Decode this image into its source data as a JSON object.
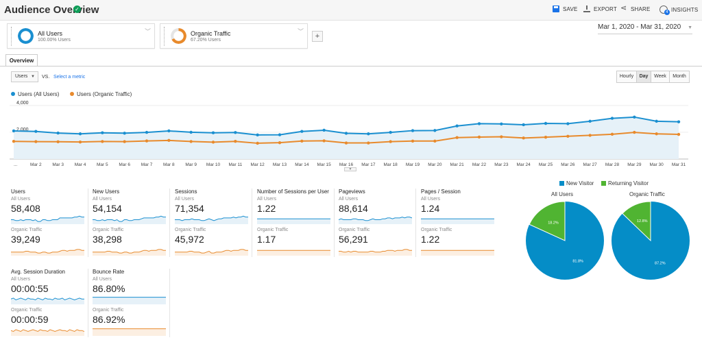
{
  "header": {
    "title": "Audience Overview",
    "actions": [
      {
        "label": "SAVE",
        "icon": "save-icon"
      },
      {
        "label": "EXPORT",
        "icon": "export-icon"
      },
      {
        "label": "SHARE",
        "icon": "share-icon"
      },
      {
        "label": "INSIGHTS",
        "icon": "insights-icon",
        "badge": "4"
      }
    ]
  },
  "segments": [
    {
      "name": "All Users",
      "sub": "100.00% Users",
      "percent": 100,
      "color": "#1a8fd0"
    },
    {
      "name": "Organic Traffic",
      "sub": "67.20% Users",
      "percent": 67.2,
      "color": "#e88a2c"
    }
  ],
  "date_range": "Mar 1, 2020 - Mar 31, 2020",
  "tabs": {
    "overview": "Overview"
  },
  "controls": {
    "metric": "Users",
    "vs": "VS.",
    "select_metric": "Select a metric",
    "granularity": [
      {
        "label": "Hourly",
        "active": false
      },
      {
        "label": "Day",
        "active": true
      },
      {
        "label": "Week",
        "active": false
      },
      {
        "label": "Month",
        "active": false
      }
    ]
  },
  "chart_legend": {
    "all_users": "Users (All Users)",
    "organic": "Users (Organic Traffic)"
  },
  "colors": {
    "blue": "#1a8fd0",
    "orange": "#e88a2c",
    "pie_blue": "#058dc7",
    "pie_green": "#50b432"
  },
  "chart_data": {
    "type": "line",
    "y_ticks": [
      "4,000",
      "2,000"
    ],
    "ylim": [
      0,
      4400
    ],
    "x_ticks": [
      "...",
      "Mar 2",
      "Mar 3",
      "Mar 4",
      "Mar 5",
      "Mar 6",
      "Mar 7",
      "Mar 8",
      "Mar 9",
      "Mar 10",
      "Mar 11",
      "Mar 12",
      "Mar 13",
      "Mar 14",
      "Mar 15",
      "Mar 16",
      "Mar 17",
      "Mar 18",
      "Mar 19",
      "Mar 20",
      "Mar 21",
      "Mar 22",
      "Mar 23",
      "Mar 24",
      "Mar 25",
      "Mar 26",
      "Mar 27",
      "Mar 28",
      "Mar 29",
      "Mar 30",
      "Mar 31"
    ],
    "series": [
      {
        "name": "Users (All Users)",
        "values": [
          2100,
          2060,
          1940,
          1880,
          1960,
          1930,
          1990,
          2100,
          2000,
          1960,
          1980,
          1800,
          1810,
          2060,
          2150,
          1920,
          1880,
          1990,
          2120,
          2130,
          2470,
          2640,
          2620,
          2560,
          2660,
          2640,
          2820,
          3040,
          3130,
          2820,
          2780
        ]
      },
      {
        "name": "Users (Organic Traffic)",
        "values": [
          1320,
          1300,
          1290,
          1270,
          1310,
          1300,
          1350,
          1390,
          1310,
          1260,
          1320,
          1180,
          1220,
          1340,
          1360,
          1200,
          1200,
          1300,
          1340,
          1340,
          1600,
          1640,
          1660,
          1570,
          1630,
          1700,
          1770,
          1850,
          1990,
          1880,
          1840
        ]
      }
    ]
  },
  "metrics": [
    {
      "title": "Users",
      "all_label": "All Users",
      "all_value": "58,408",
      "org_label": "Organic Traffic",
      "org_value": "39,249",
      "spark_all": [
        5,
        5,
        4,
        4,
        5,
        4,
        5,
        5,
        5,
        4,
        5,
        3,
        3,
        5,
        5,
        4,
        4,
        5,
        5,
        5,
        7,
        7,
        7,
        7,
        7,
        7,
        8,
        8,
        9,
        8,
        8
      ],
      "spark_org": [
        4,
        4,
        4,
        4,
        4,
        4,
        5,
        5,
        4,
        4,
        4,
        3,
        3,
        4,
        4,
        3,
        3,
        4,
        4,
        4,
        5,
        6,
        6,
        5,
        6,
        6,
        6,
        7,
        7,
        6,
        6
      ]
    },
    {
      "title": "New Users",
      "all_label": "All Users",
      "all_value": "54,154",
      "org_label": "Organic Traffic",
      "org_value": "38,298",
      "spark_all": [
        5,
        5,
        4,
        4,
        5,
        4,
        5,
        5,
        5,
        4,
        5,
        3,
        3,
        5,
        5,
        4,
        4,
        5,
        5,
        5,
        6,
        7,
        7,
        7,
        7,
        7,
        8,
        8,
        9,
        8,
        8
      ],
      "spark_org": [
        4,
        4,
        4,
        4,
        4,
        4,
        5,
        5,
        4,
        4,
        4,
        3,
        3,
        4,
        4,
        3,
        3,
        4,
        4,
        4,
        5,
        6,
        6,
        5,
        6,
        6,
        6,
        7,
        7,
        6,
        6
      ]
    },
    {
      "title": "Sessions",
      "all_label": "All Users",
      "all_value": "71,354",
      "org_label": "Organic Traffic",
      "org_value": "45,972",
      "spark_all": [
        5,
        5,
        5,
        4,
        5,
        5,
        5,
        6,
        5,
        5,
        5,
        4,
        4,
        5,
        6,
        5,
        4,
        5,
        6,
        6,
        7,
        7,
        7,
        7,
        8,
        7,
        8,
        8,
        9,
        8,
        8
      ],
      "spark_org": [
        4,
        4,
        4,
        4,
        4,
        4,
        5,
        5,
        4,
        4,
        4,
        3,
        3,
        4,
        5,
        3,
        3,
        4,
        4,
        4,
        5,
        6,
        6,
        5,
        6,
        6,
        6,
        7,
        7,
        6,
        6
      ]
    },
    {
      "title": "Number of Sessions per User",
      "all_label": "All Users",
      "all_value": "1.22",
      "org_label": "Organic Traffic",
      "org_value": "1.17",
      "spark_all": [
        6,
        6,
        6,
        6,
        6,
        6,
        6,
        6,
        6,
        6,
        6,
        6,
        6,
        6,
        6,
        6,
        6,
        6,
        6,
        6,
        6,
        6,
        6,
        6,
        6,
        6,
        6,
        6,
        6,
        6,
        6
      ],
      "spark_org": [
        6,
        6,
        6,
        6,
        6,
        6,
        6,
        6,
        6,
        6,
        6,
        6,
        6,
        6,
        6,
        6,
        6,
        6,
        6,
        6,
        6,
        6,
        6,
        6,
        6,
        6,
        6,
        6,
        6,
        6,
        6
      ]
    },
    {
      "title": "Pageviews",
      "all_label": "All Users",
      "all_value": "88,614",
      "org_label": "Organic Traffic",
      "org_value": "56,291",
      "spark_all": [
        5,
        6,
        5,
        5,
        5,
        5,
        6,
        6,
        5,
        5,
        5,
        4,
        4,
        5,
        6,
        5,
        5,
        5,
        6,
        6,
        7,
        7,
        6,
        7,
        7,
        7,
        8,
        7,
        8,
        8,
        7
      ],
      "spark_org": [
        5,
        5,
        4,
        4,
        5,
        4,
        5,
        5,
        4,
        4,
        4,
        4,
        4,
        5,
        5,
        4,
        4,
        4,
        5,
        5,
        6,
        6,
        6,
        5,
        6,
        6,
        6,
        7,
        7,
        6,
        6
      ]
    },
    {
      "title": "Pages / Session",
      "all_label": "All Users",
      "all_value": "1.24",
      "org_label": "Organic Traffic",
      "org_value": "1.22",
      "spark_all": [
        6,
        6,
        6,
        6,
        6,
        6,
        6,
        6,
        6,
        6,
        6,
        6,
        6,
        6,
        6,
        6,
        6,
        6,
        6,
        6,
        6,
        6,
        6,
        6,
        6,
        6,
        6,
        6,
        6,
        6,
        6
      ],
      "spark_org": [
        6,
        6,
        6,
        6,
        6,
        6,
        6,
        6,
        6,
        6,
        6,
        6,
        6,
        6,
        6,
        6,
        6,
        6,
        6,
        6,
        6,
        6,
        6,
        6,
        6,
        6,
        6,
        6,
        6,
        6,
        6
      ]
    },
    {
      "title": "Avg. Session Duration",
      "all_label": "All Users",
      "all_value": "00:00:55",
      "org_label": "Organic Traffic",
      "org_value": "00:00:59",
      "spark_all": [
        6,
        7,
        5,
        6,
        7,
        6,
        5,
        7,
        6,
        6,
        5,
        7,
        6,
        5,
        7,
        6,
        6,
        5,
        7,
        6,
        6,
        7,
        5,
        6,
        7,
        6,
        5,
        6,
        7,
        6,
        6
      ],
      "spark_org": [
        6,
        5,
        7,
        6,
        5,
        7,
        6,
        5,
        6,
        7,
        6,
        5,
        7,
        6,
        6,
        5,
        7,
        6,
        5,
        6,
        7,
        6,
        6,
        5,
        7,
        6,
        5,
        7,
        6,
        6,
        5
      ]
    },
    {
      "title": "Bounce Rate",
      "all_label": "All Users",
      "all_value": "86.80%",
      "org_label": "Organic Traffic",
      "org_value": "86.92%",
      "spark_all": [
        8,
        8,
        8,
        8,
        8,
        8,
        8,
        8,
        8,
        8,
        8,
        8,
        8,
        8,
        8,
        8,
        8,
        8,
        8,
        8,
        8,
        8,
        8,
        8,
        8,
        8,
        8,
        8,
        8,
        8,
        8
      ],
      "spark_org": [
        8,
        8,
        8,
        8,
        8,
        8,
        8,
        8,
        8,
        8,
        8,
        8,
        8,
        8,
        8,
        8,
        8,
        8,
        8,
        8,
        8,
        8,
        8,
        8,
        8,
        8,
        8,
        8,
        8,
        8,
        8
      ]
    }
  ],
  "pies": {
    "legend_new": "New Visitor",
    "legend_returning": "Returning Visitor",
    "charts": [
      {
        "title": "All Users",
        "new_pct": 81.8,
        "ret_pct": 18.2,
        "new_label": "81.8%",
        "ret_label": "18.2%"
      },
      {
        "title": "Organic Traffic",
        "new_pct": 87.2,
        "ret_pct": 12.8,
        "new_label": "87.2%",
        "ret_label": "12.8%"
      }
    ]
  }
}
